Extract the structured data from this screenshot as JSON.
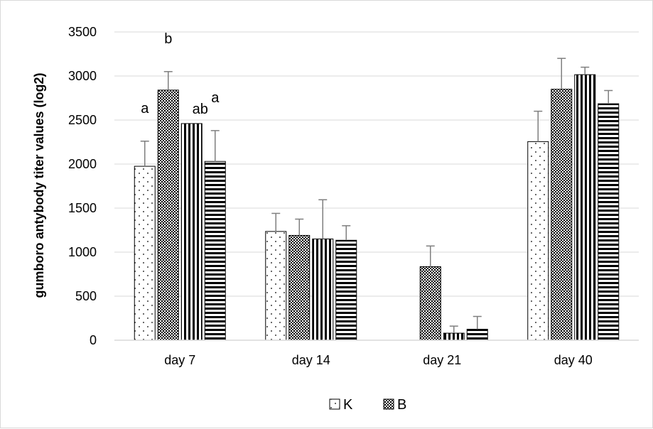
{
  "chart_data": {
    "type": "bar",
    "title": "",
    "xlabel": "",
    "ylabel": "gumboro antybody titer values (log2)",
    "ylim": [
      0,
      3500
    ],
    "yticks": [
      0,
      500,
      1000,
      1500,
      2000,
      2500,
      3000,
      3500
    ],
    "grid": "horizontal",
    "legend_position": "bottom",
    "categories": [
      "day 7",
      "day 14",
      "day 21",
      "day 40"
    ],
    "series": [
      {
        "name": "K",
        "pattern": "dots",
        "values": [
          1975,
          1235,
          0,
          2255
        ],
        "errors": [
          285,
          205,
          0,
          345
        ],
        "letters": [
          "a",
          "",
          "",
          ""
        ]
      },
      {
        "name": "B",
        "pattern": "checker",
        "values": [
          2840,
          1190,
          835,
          2850
        ],
        "errors": [
          210,
          185,
          235,
          350
        ],
        "letters": [
          "b",
          "",
          "",
          ""
        ]
      },
      {
        "name": "",
        "pattern": "vertical-lines",
        "values": [
          2460,
          1150,
          80,
          3015
        ],
        "errors": [
          0,
          445,
          80,
          85
        ],
        "letters": [
          "ab",
          "",
          "",
          ""
        ]
      },
      {
        "name": "",
        "pattern": "horizontal-lines",
        "values": [
          2030,
          1135,
          125,
          2685
        ],
        "errors": [
          350,
          165,
          145,
          150
        ],
        "letters": [
          "a",
          "",
          "",
          ""
        ]
      }
    ],
    "colors": {
      "bar_stroke": "#000000",
      "bar_fill": "#ffffff",
      "error_bar": "#7f7f7f",
      "gridline": "#d9d9d9",
      "axis_line": "#d9d9d9"
    }
  }
}
